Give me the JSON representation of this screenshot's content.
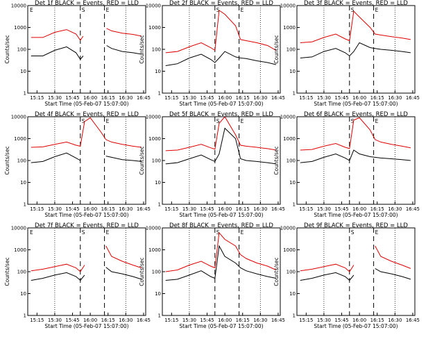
{
  "figure": {
    "xlabel": "Start Time (05-Feb-07 15:07:00)",
    "ylabel": "Counts/sec",
    "x_ticks": [
      "15:15",
      "15:30",
      "15:45",
      "16:00",
      "16:15",
      "16:30",
      "16:45"
    ],
    "y_ticks": [
      "1",
      "10",
      "100",
      "1000",
      "10000"
    ],
    "colors": {
      "events": "#000000",
      "lld": "#e00000"
    }
  },
  "chart_data": [
    {
      "type": "line",
      "title": "Det 1f BLACK = Events, RED = LLD",
      "xlabel": "Start Time (05-Feb-07 15:07:00)",
      "ylabel": "Counts/sec",
      "x": [
        15.167,
        15.333,
        15.5,
        15.667,
        15.8,
        15.86,
        15.9,
        16.0,
        16.15,
        16.23,
        16.3,
        16.45,
        16.6,
        16.72
      ],
      "xlim": [
        15.12,
        16.78
      ],
      "ylim": [
        1,
        10000
      ],
      "y_scale": "log",
      "series": [
        {
          "name": "BLACK = Events",
          "color": "#000000",
          "values": [
            50,
            50,
            90,
            130,
            70,
            35,
            50,
            0,
            0,
            150,
            110,
            80,
            70,
            60
          ]
        },
        {
          "name": "RED = LLD",
          "color": "#e00000",
          "values": [
            350,
            350,
            600,
            800,
            500,
            260,
            400,
            0,
            0,
            900,
            700,
            550,
            480,
            400
          ]
        }
      ],
      "markers": [
        "E",
        "S",
        "E"
      ]
    },
    {
      "type": "line",
      "title": "Det 2f BLACK = Events, RED = LLD",
      "xlabel": "Start Time (05-Feb-07 15:07:00)",
      "ylabel": "Counts/sec",
      "x": [
        15.167,
        15.333,
        15.5,
        15.667,
        15.8,
        15.86,
        15.92,
        16.0,
        16.15,
        16.22,
        16.3,
        16.45,
        16.6,
        16.72
      ],
      "xlim": [
        15.12,
        16.78
      ],
      "ylim": [
        1,
        10000
      ],
      "y_scale": "log",
      "series": [
        {
          "name": "BLACK = Events",
          "color": "#000000",
          "values": [
            18,
            22,
            40,
            60,
            35,
            25,
            40,
            80,
            45,
            40,
            38,
            30,
            25,
            20
          ]
        },
        {
          "name": "RED = LLD",
          "color": "#e00000",
          "values": [
            70,
            80,
            130,
            200,
            120,
            90,
            6000,
            4000,
            1200,
            280,
            250,
            200,
            150,
            90
          ]
        }
      ],
      "markers": [
        "S",
        "E"
      ]
    },
    {
      "type": "line",
      "title": "Det 3f BLACK = Events, RED = LLD",
      "xlabel": "Start Time (05-Feb-07 15:07:00)",
      "ylabel": "Counts/sec",
      "x": [
        15.167,
        15.333,
        15.5,
        15.667,
        15.8,
        15.86,
        15.92,
        16.0,
        16.15,
        16.22,
        16.3,
        16.45,
        16.6,
        16.72
      ],
      "xlim": [
        15.12,
        16.78
      ],
      "ylim": [
        1,
        10000
      ],
      "y_scale": "log",
      "series": [
        {
          "name": "BLACK = Events",
          "color": "#000000",
          "values": [
            40,
            45,
            80,
            110,
            70,
            50,
            80,
            200,
            120,
            110,
            100,
            90,
            80,
            70
          ]
        },
        {
          "name": "RED = LLD",
          "color": "#e00000",
          "values": [
            200,
            220,
            350,
            500,
            300,
            250,
            5500,
            3000,
            1000,
            500,
            450,
            380,
            330,
            280
          ]
        }
      ],
      "markers": [
        "S",
        "E"
      ]
    },
    {
      "type": "line",
      "title": "Det 4f BLACK = Events, RED = LLD",
      "xlabel": "Start Time (05-Feb-07 15:07:00)",
      "ylabel": "Counts/sec",
      "x": [
        15.167,
        15.333,
        15.5,
        15.667,
        15.8,
        15.86,
        15.92,
        16.0,
        16.15,
        16.22,
        16.3,
        16.45,
        16.6,
        16.72
      ],
      "xlim": [
        15.12,
        16.78
      ],
      "ylim": [
        1,
        10000
      ],
      "y_scale": "log",
      "series": [
        {
          "name": "BLACK = Events",
          "color": "#000000",
          "values": [
            80,
            90,
            150,
            220,
            130,
            100,
            0,
            0,
            0,
            160,
            140,
            110,
            100,
            90
          ]
        },
        {
          "name": "RED = LLD",
          "color": "#e00000",
          "values": [
            400,
            420,
            550,
            700,
            500,
            450,
            6000,
            9000,
            2000,
            900,
            700,
            550,
            450,
            400
          ]
        }
      ],
      "markers": [
        "S",
        "E"
      ]
    },
    {
      "type": "line",
      "title": "Det 5f BLACK = Events, RED = LLD",
      "xlabel": "Start Time (05-Feb-07 15:07:00)",
      "ylabel": "Counts/sec",
      "x": [
        15.167,
        15.333,
        15.5,
        15.667,
        15.8,
        15.86,
        15.92,
        16.0,
        16.15,
        16.22,
        16.3,
        16.45,
        16.6,
        16.72
      ],
      "xlim": [
        15.12,
        16.78
      ],
      "ylim": [
        1,
        10000
      ],
      "y_scale": "log",
      "series": [
        {
          "name": "BLACK = Events",
          "color": "#000000",
          "values": [
            70,
            80,
            120,
            180,
            110,
            90,
            200,
            3000,
            1000,
            120,
            100,
            90,
            80,
            70
          ]
        },
        {
          "name": "RED = LLD",
          "color": "#e00000",
          "values": [
            280,
            300,
            400,
            550,
            380,
            330,
            5000,
            10000,
            1500,
            500,
            450,
            400,
            350,
            300
          ]
        }
      ],
      "markers": [
        "S",
        "E"
      ]
    },
    {
      "type": "line",
      "title": "Det 6f BLACK = Events, RED = LLD",
      "xlabel": "Start Time (05-Feb-07 15:07:00)",
      "ylabel": "Counts/sec",
      "x": [
        15.167,
        15.333,
        15.5,
        15.667,
        15.8,
        15.86,
        15.92,
        16.0,
        16.15,
        16.22,
        16.3,
        16.45,
        16.6,
        16.72
      ],
      "xlim": [
        15.12,
        16.78
      ],
      "ylim": [
        1,
        10000
      ],
      "y_scale": "log",
      "series": [
        {
          "name": "BLACK = Events",
          "color": "#000000",
          "values": [
            80,
            90,
            140,
            200,
            130,
            100,
            300,
            200,
            150,
            140,
            130,
            120,
            110,
            100
          ]
        },
        {
          "name": "RED = LLD",
          "color": "#e00000",
          "values": [
            300,
            320,
            450,
            600,
            400,
            350,
            7000,
            9000,
            2500,
            900,
            700,
            550,
            450,
            380
          ]
        }
      ],
      "markers": [
        "S",
        "E"
      ]
    },
    {
      "type": "line",
      "title": "Det 7f BLACK = Events, RED = LLD",
      "xlabel": "Start Time (05-Feb-07 15:07:00)",
      "ylabel": "Counts/sec",
      "x": [
        15.167,
        15.333,
        15.5,
        15.667,
        15.8,
        15.86,
        15.92,
        16.0,
        16.15,
        16.22,
        16.3,
        16.45,
        16.6,
        16.72
      ],
      "xlim": [
        15.12,
        16.78
      ],
      "ylim": [
        1,
        10000
      ],
      "y_scale": "log",
      "series": [
        {
          "name": "BLACK = Events",
          "color": "#000000",
          "values": [
            40,
            50,
            70,
            90,
            60,
            40,
            70,
            0,
            0,
            160,
            100,
            80,
            60,
            45
          ]
        },
        {
          "name": "RED = LLD",
          "color": "#e00000",
          "values": [
            110,
            130,
            170,
            220,
            150,
            100,
            200,
            0,
            0,
            1500,
            500,
            300,
            200,
            150
          ]
        }
      ],
      "markers": [
        "E",
        "S",
        "E"
      ]
    },
    {
      "type": "line",
      "title": "Det 8f BLACK = Events, RED = LLD",
      "xlabel": "Start Time (05-Feb-07 15:07:00)",
      "ylabel": "Counts/sec",
      "x": [
        15.167,
        15.333,
        15.5,
        15.667,
        15.8,
        15.86,
        15.92,
        16.0,
        16.15,
        16.22,
        16.3,
        16.45,
        16.6,
        16.72
      ],
      "xlim": [
        15.12,
        16.78
      ],
      "ylim": [
        1,
        10000
      ],
      "y_scale": "log",
      "series": [
        {
          "name": "BLACK = Events",
          "color": "#000000",
          "values": [
            40,
            45,
            70,
            110,
            60,
            50,
            1500,
            500,
            250,
            150,
            110,
            80,
            60,
            50
          ]
        },
        {
          "name": "RED = LLD",
          "color": "#e00000",
          "values": [
            100,
            120,
            200,
            300,
            180,
            150,
            6000,
            3000,
            1500,
            600,
            400,
            250,
            180,
            120
          ]
        }
      ],
      "markers": [
        "S",
        "E"
      ]
    },
    {
      "type": "line",
      "title": "Det 9f BLACK = Events, RED = LLD",
      "xlabel": "Start Time (05-Feb-07 15:07:00)",
      "ylabel": "Counts/sec",
      "x": [
        15.167,
        15.333,
        15.5,
        15.667,
        15.8,
        15.86,
        15.92,
        16.0,
        16.15,
        16.22,
        16.3,
        16.45,
        16.6,
        16.72
      ],
      "xlim": [
        15.12,
        16.78
      ],
      "ylim": [
        1,
        10000
      ],
      "y_scale": "log",
      "series": [
        {
          "name": "BLACK = Events",
          "color": "#000000",
          "values": [
            40,
            50,
            70,
            90,
            60,
            40,
            70,
            0,
            0,
            140,
            100,
            80,
            60,
            45
          ]
        },
        {
          "name": "RED = LLD",
          "color": "#e00000",
          "values": [
            110,
            130,
            170,
            220,
            150,
            100,
            200,
            0,
            0,
            1500,
            500,
            300,
            200,
            140
          ]
        }
      ],
      "markers": [
        "S",
        "E"
      ]
    }
  ]
}
